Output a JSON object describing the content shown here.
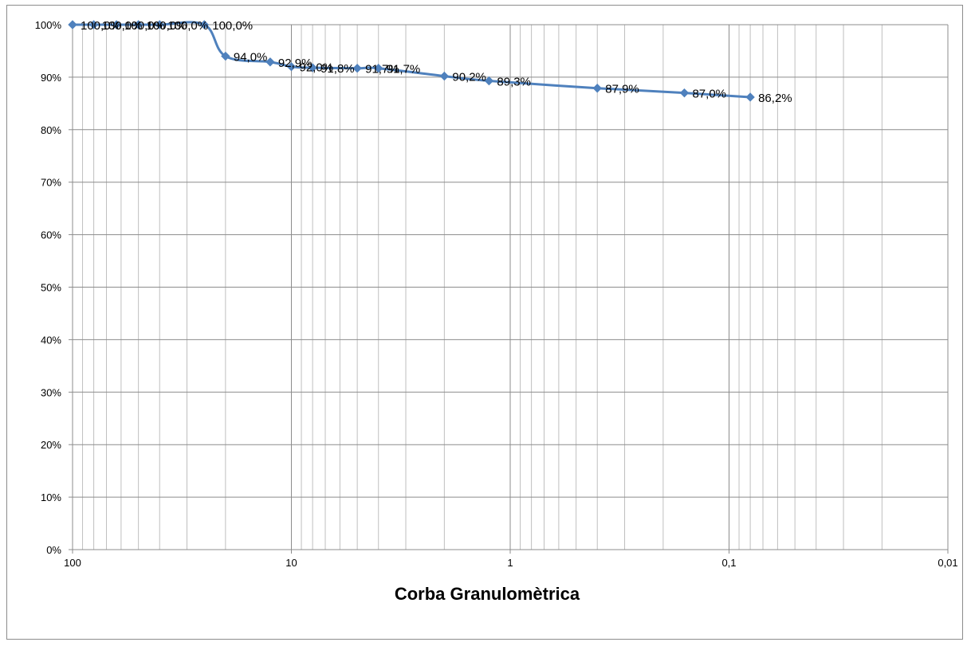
{
  "chart_data": {
    "type": "line",
    "title": "Corba Granulomètrica",
    "xlabel": "",
    "ylabel": "",
    "x_scale": "log",
    "x_reversed": true,
    "xlim": [
      100,
      0.01
    ],
    "ylim": [
      0,
      1
    ],
    "grid": true,
    "legend": "none",
    "x_ticks": [
      {
        "value": 100,
        "label": "100"
      },
      {
        "value": 10,
        "label": "10"
      },
      {
        "value": 1,
        "label": "1"
      },
      {
        "value": 0.1,
        "label": "0,1"
      },
      {
        "value": 0.01,
        "label": "0,01"
      }
    ],
    "y_ticks": [
      {
        "value": 0,
        "label": "0%"
      },
      {
        "value": 0.1,
        "label": "10%"
      },
      {
        "value": 0.2,
        "label": "20%"
      },
      {
        "value": 0.3,
        "label": "30%"
      },
      {
        "value": 0.4,
        "label": "40%"
      },
      {
        "value": 0.5,
        "label": "50%"
      },
      {
        "value": 0.6,
        "label": "60%"
      },
      {
        "value": 0.7,
        "label": "70%"
      },
      {
        "value": 0.8,
        "label": "80%"
      },
      {
        "value": 0.9,
        "label": "90%"
      },
      {
        "value": 1,
        "label": "100%"
      }
    ],
    "series": [
      {
        "color": "#4f81bd",
        "x": [
          100,
          80,
          63,
          50,
          40,
          25,
          20,
          12.5,
          10,
          8,
          5,
          4,
          2,
          1.25,
          0.4,
          0.16,
          0.08
        ],
        "y": [
          1.0,
          1.0,
          1.0,
          1.0,
          1.0,
          1.0,
          0.94,
          0.929,
          0.92,
          0.918,
          0.917,
          0.917,
          0.902,
          0.893,
          0.879,
          0.87,
          0.862
        ],
        "labels": [
          "100,0%",
          "100,0%",
          "100,0%",
          "100,0%",
          "100,0%",
          "100,0%",
          "94,0%",
          "92,9%",
          "92,0%",
          "91,8%",
          "91,7%",
          "91,7%",
          "90,2%",
          "89,3%",
          "87,9%",
          "87,0%",
          "86,2%"
        ]
      }
    ]
  },
  "colors": {
    "series": "#4f81bd",
    "major_grid": "#8c8c8c",
    "minor_grid": "#bfbfbf",
    "axis": "#8c8c8c"
  }
}
